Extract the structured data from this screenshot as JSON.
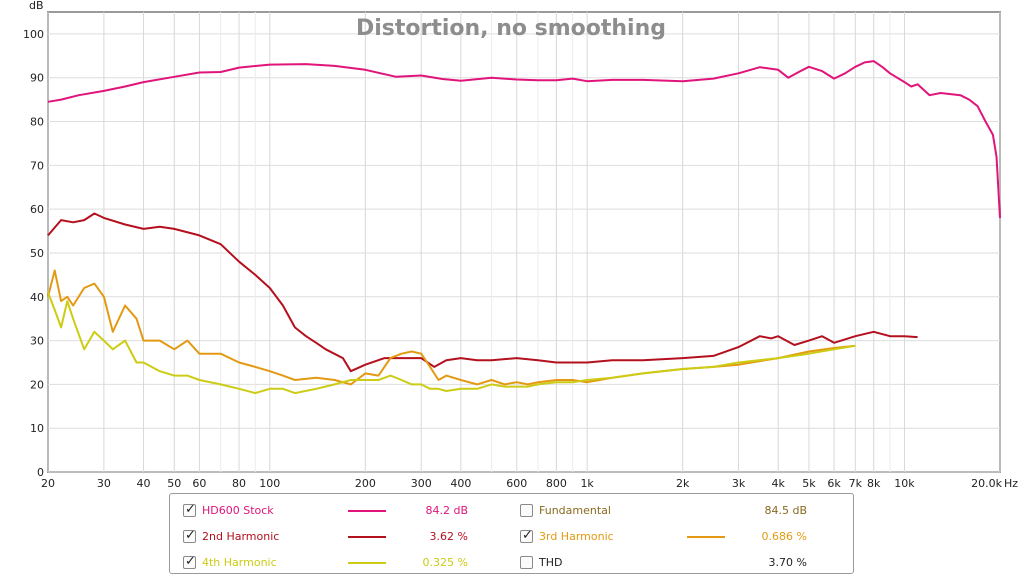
{
  "chart_data": {
    "type": "line",
    "title": "Distortion, no smoothing",
    "ylabel": "dB",
    "xunit": "Hz",
    "xscale": "log",
    "xlim": [
      20,
      20000
    ],
    "ylim": [
      0,
      105
    ],
    "grid": true,
    "y_ticks": [
      "0",
      "10",
      "20",
      "30",
      "40",
      "50",
      "60",
      "70",
      "80",
      "90",
      "100"
    ],
    "x_ticks": [
      {
        "value": 20,
        "label": "20"
      },
      {
        "value": 30,
        "label": "30"
      },
      {
        "value": 40,
        "label": "40"
      },
      {
        "value": 50,
        "label": "50"
      },
      {
        "value": 60,
        "label": "60"
      },
      {
        "value": 80,
        "label": "80"
      },
      {
        "value": 100,
        "label": "100"
      },
      {
        "value": 200,
        "label": "200"
      },
      {
        "value": 300,
        "label": "300"
      },
      {
        "value": 400,
        "label": "400"
      },
      {
        "value": 600,
        "label": "600"
      },
      {
        "value": 800,
        "label": "800"
      },
      {
        "value": 1000,
        "label": "1k"
      },
      {
        "value": 2000,
        "label": "2k"
      },
      {
        "value": 3000,
        "label": "3k"
      },
      {
        "value": 4000,
        "label": "4k"
      },
      {
        "value": 5000,
        "label": "5k"
      },
      {
        "value": 6000,
        "label": "6k"
      },
      {
        "value": 7000,
        "label": "7k"
      },
      {
        "value": 8000,
        "label": "8k"
      },
      {
        "value": 10000,
        "label": "10k"
      },
      {
        "value": 20000,
        "label": "20.0k"
      }
    ],
    "minor_x": [
      70,
      90,
      500,
      700,
      900,
      9000
    ],
    "series": [
      {
        "name": "HD600 Stock",
        "color": "#e0147a",
        "x": [
          20,
          22,
          25,
          30,
          35,
          40,
          50,
          60,
          70,
          80,
          100,
          130,
          160,
          200,
          250,
          300,
          350,
          400,
          500,
          600,
          700,
          800,
          900,
          1000,
          1200,
          1500,
          2000,
          2500,
          3000,
          3500,
          4000,
          4300,
          4700,
          5000,
          5500,
          6000,
          6500,
          7000,
          7500,
          8000,
          8500,
          9000,
          10000,
          10500,
          11000,
          12000,
          13000,
          15000,
          16000,
          17000,
          18000,
          19000,
          19500,
          20000
        ],
        "y": [
          84.5,
          85,
          86,
          87,
          88,
          89,
          90.2,
          91.2,
          91.3,
          92.3,
          93,
          93.1,
          92.7,
          91.8,
          90.2,
          90.5,
          89.7,
          89.3,
          90,
          89.6,
          89.4,
          89.4,
          89.8,
          89.2,
          89.5,
          89.5,
          89.2,
          89.8,
          91,
          92.4,
          91.8,
          90,
          91.5,
          92.5,
          91.5,
          89.8,
          91,
          92.5,
          93.5,
          93.8,
          92.5,
          91,
          89,
          88,
          88.5,
          86,
          86.5,
          86,
          85,
          83.5,
          80,
          77,
          72,
          58
        ]
      },
      {
        "name": "2nd Harmonic",
        "color": "#b4101e",
        "x": [
          20,
          22,
          24,
          26,
          28,
          30,
          35,
          40,
          45,
          50,
          60,
          70,
          80,
          90,
          100,
          110,
          120,
          130,
          140,
          150,
          170,
          180,
          200,
          230,
          260,
          300,
          330,
          360,
          400,
          450,
          500,
          600,
          700,
          800,
          1000,
          1200,
          1500,
          2000,
          2500,
          3000,
          3500,
          3800,
          4000,
          4500,
          5000,
          5500,
          6000,
          7000,
          8000,
          9000,
          10000,
          11000
        ],
        "y": [
          54,
          57.5,
          57,
          57.5,
          59,
          58,
          56.5,
          55.5,
          56,
          55.5,
          54,
          52,
          48,
          45,
          42,
          38,
          33,
          31,
          29.5,
          28,
          26,
          23,
          24.5,
          26,
          26,
          26,
          24,
          25.5,
          26,
          25.5,
          25.5,
          26,
          25.5,
          25,
          25,
          25.5,
          25.5,
          26,
          26.5,
          28.5,
          31,
          30.5,
          31,
          29,
          30,
          31,
          29.5,
          31,
          32,
          31,
          31,
          30.8
        ]
      },
      {
        "name": "3rd Harmonic",
        "color": "#e39a12",
        "x": [
          20,
          21,
          22,
          23,
          24,
          26,
          28,
          30,
          32,
          35,
          38,
          40,
          45,
          50,
          55,
          60,
          70,
          80,
          90,
          100,
          110,
          120,
          140,
          160,
          180,
          200,
          220,
          240,
          260,
          280,
          300,
          320,
          340,
          360,
          400,
          450,
          500,
          550,
          600,
          650,
          700,
          800,
          900,
          1000,
          1200,
          1500,
          2000,
          2500,
          3000,
          4000,
          5000,
          6000,
          7000
        ],
        "y": [
          40,
          46,
          39,
          40,
          38,
          42,
          43,
          40,
          32,
          38,
          35,
          30,
          30,
          28,
          30,
          27,
          27,
          25,
          24,
          23,
          22,
          21,
          21.5,
          21,
          20,
          22.5,
          22,
          26,
          27,
          27.5,
          27,
          24,
          21,
          22,
          21,
          20,
          21,
          20,
          20.5,
          20,
          20.5,
          21,
          21,
          20.5,
          21.5,
          22.5,
          23.5,
          24,
          24.5,
          26,
          27.5,
          28.3,
          28.8
        ]
      },
      {
        "name": "4th Harmonic",
        "color": "#cccc14",
        "x": [
          20,
          21,
          22,
          23,
          24,
          26,
          28,
          30,
          32,
          35,
          38,
          40,
          45,
          50,
          55,
          60,
          70,
          80,
          90,
          100,
          110,
          120,
          140,
          160,
          180,
          200,
          220,
          240,
          260,
          280,
          300,
          320,
          340,
          360,
          400,
          450,
          500,
          550,
          600,
          650,
          700,
          800,
          900,
          1000,
          1200,
          1500,
          2000,
          2500,
          3000,
          4000,
          5000,
          6000,
          7000
        ],
        "y": [
          41,
          37,
          33,
          39,
          35,
          28,
          32,
          30,
          28,
          30,
          25,
          25,
          23,
          22,
          22,
          21,
          20,
          19,
          18,
          19,
          19,
          18,
          19,
          20,
          21,
          21,
          21,
          22,
          21,
          20,
          20,
          19,
          19,
          18.5,
          19,
          19,
          20,
          19.5,
          19.5,
          19.5,
          20,
          20.5,
          20.5,
          21,
          21.5,
          22.5,
          23.5,
          24,
          25,
          26,
          27,
          28,
          28.8
        ]
      }
    ]
  },
  "legend": [
    {
      "name": "HD600 Stock",
      "value": "84.2 dB",
      "checked": true,
      "color": "#e0147a",
      "line": true
    },
    {
      "name": "Fundamental",
      "value": "84.5 dB",
      "checked": false,
      "color": "#8a6a1f",
      "line": false
    },
    {
      "name": "2nd Harmonic",
      "value": "3.62 %",
      "checked": true,
      "color": "#b4101e",
      "line": true
    },
    {
      "name": "3rd Harmonic",
      "value": "0.686 %",
      "checked": true,
      "color": "#e39a12",
      "line": true
    },
    {
      "name": "4th Harmonic",
      "value": "0.325 %",
      "checked": true,
      "color": "#cccc14",
      "line": true
    },
    {
      "name": "THD",
      "value": "3.70 %",
      "checked": false,
      "color": "#222222",
      "line": false
    }
  ]
}
